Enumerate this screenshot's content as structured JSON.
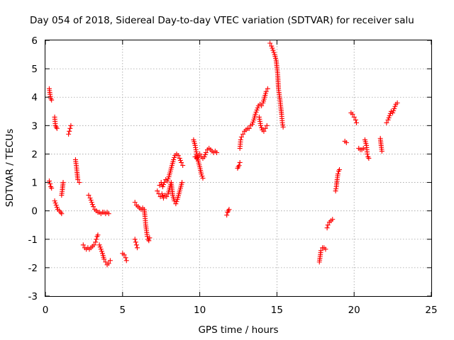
{
  "chart_data": {
    "type": "scatter",
    "title": "Day 054 of 2018, Sidereal Day-to-day VTEC variation (SDTVAR) for receiver salu",
    "xlabel": "GPS time / hours",
    "ylabel": "SDTVAR / TECUs",
    "xlim": [
      0,
      25
    ],
    "ylim": [
      -3,
      6
    ],
    "xticks": [
      0,
      5,
      10,
      15,
      20,
      25
    ],
    "yticks": [
      -3,
      -2,
      -1,
      0,
      1,
      2,
      3,
      4,
      5,
      6
    ],
    "grid": true,
    "marker": "+",
    "color": "#ff0000",
    "series": [
      {
        "name": "SDTVAR",
        "segments": [
          [
            [
              0.25,
              4.3
            ],
            [
              0.3,
              4.1
            ],
            [
              0.35,
              3.95
            ],
            [
              0.4,
              3.9
            ]
          ],
          [
            [
              0.25,
              1.05
            ],
            [
              0.3,
              0.95
            ],
            [
              0.35,
              0.85
            ],
            [
              0.4,
              0.8
            ]
          ],
          [
            [
              0.6,
              3.3
            ],
            [
              0.65,
              3.0
            ],
            [
              0.7,
              2.95
            ],
            [
              0.75,
              2.9
            ]
          ],
          [
            [
              0.6,
              0.35
            ],
            [
              0.7,
              0.2
            ],
            [
              0.8,
              0.05
            ],
            [
              0.9,
              0.0
            ],
            [
              1.0,
              -0.05
            ],
            [
              1.05,
              -0.1
            ]
          ],
          [
            [
              1.05,
              0.55
            ],
            [
              1.1,
              0.75
            ],
            [
              1.15,
              1.0
            ]
          ],
          [
            [
              1.5,
              2.7
            ],
            [
              1.55,
              2.8
            ],
            [
              1.6,
              2.9
            ],
            [
              1.65,
              3.0
            ]
          ],
          [
            [
              1.95,
              1.8
            ],
            [
              2.0,
              1.6
            ],
            [
              2.05,
              1.35
            ],
            [
              2.1,
              1.1
            ],
            [
              2.2,
              1.0
            ]
          ],
          [
            [
              2.45,
              -1.2
            ],
            [
              2.55,
              -1.3
            ],
            [
              2.65,
              -1.35
            ],
            [
              2.75,
              -1.3
            ],
            [
              2.85,
              -1.35
            ],
            [
              2.95,
              -1.3
            ],
            [
              3.05,
              -1.25
            ],
            [
              3.15,
              -1.2
            ],
            [
              3.25,
              -1.1
            ],
            [
              3.3,
              -1.0
            ],
            [
              3.35,
              -0.9
            ],
            [
              3.4,
              -0.85
            ]
          ],
          [
            [
              2.8,
              0.55
            ],
            [
              2.9,
              0.45
            ],
            [
              3.0,
              0.3
            ],
            [
              3.1,
              0.15
            ],
            [
              3.2,
              0.05
            ],
            [
              3.3,
              0.0
            ],
            [
              3.4,
              -0.05
            ],
            [
              3.5,
              -0.05
            ],
            [
              3.6,
              -0.1
            ],
            [
              3.7,
              -0.05
            ],
            [
              3.8,
              -0.05
            ],
            [
              3.9,
              -0.1
            ],
            [
              4.0,
              -0.05
            ],
            [
              4.1,
              -0.1
            ]
          ],
          [
            [
              3.5,
              -1.2
            ],
            [
              3.6,
              -1.35
            ],
            [
              3.7,
              -1.5
            ],
            [
              3.8,
              -1.7
            ],
            [
              3.9,
              -1.8
            ],
            [
              4.0,
              -1.9
            ],
            [
              4.1,
              -1.85
            ],
            [
              4.2,
              -1.75
            ]
          ],
          [
            [
              5.0,
              -1.5
            ],
            [
              5.1,
              -1.55
            ],
            [
              5.2,
              -1.65
            ],
            [
              5.25,
              -1.75
            ]
          ],
          [
            [
              5.8,
              -1.0
            ],
            [
              5.85,
              -1.1
            ],
            [
              5.9,
              -1.2
            ],
            [
              5.95,
              -1.3
            ]
          ],
          [
            [
              5.8,
              0.3
            ],
            [
              5.9,
              0.2
            ],
            [
              6.0,
              0.15
            ],
            [
              6.1,
              0.1
            ],
            [
              6.2,
              0.05
            ],
            [
              6.3,
              0.1
            ],
            [
              6.4,
              0.05
            ],
            [
              6.45,
              -0.2
            ],
            [
              6.5,
              -0.5
            ],
            [
              6.55,
              -0.7
            ],
            [
              6.6,
              -0.9
            ],
            [
              6.65,
              -1.0
            ],
            [
              6.7,
              -1.05
            ],
            [
              6.75,
              -0.95
            ]
          ],
          [
            [
              7.25,
              0.7
            ],
            [
              7.35,
              0.6
            ],
            [
              7.45,
              0.5
            ],
            [
              7.55,
              0.6
            ],
            [
              7.65,
              0.45
            ],
            [
              7.75,
              0.55
            ],
            [
              7.85,
              0.5
            ],
            [
              7.95,
              0.6
            ],
            [
              8.05,
              0.8
            ],
            [
              8.15,
              1.0
            ],
            [
              8.25,
              0.55
            ],
            [
              8.35,
              0.35
            ],
            [
              8.45,
              0.25
            ],
            [
              8.55,
              0.4
            ],
            [
              8.65,
              0.6
            ],
            [
              8.75,
              0.8
            ],
            [
              8.85,
              1.0
            ]
          ],
          [
            [
              7.4,
              0.9
            ],
            [
              7.5,
              1.0
            ],
            [
              7.6,
              0.85
            ],
            [
              7.7,
              1.0
            ],
            [
              7.8,
              1.1
            ],
            [
              7.9,
              1.05
            ],
            [
              8.0,
              1.2
            ],
            [
              8.1,
              1.4
            ],
            [
              8.2,
              1.6
            ],
            [
              8.3,
              1.8
            ],
            [
              8.4,
              1.95
            ],
            [
              8.5,
              2.0
            ],
            [
              8.6,
              1.95
            ],
            [
              8.7,
              1.85
            ],
            [
              8.8,
              1.7
            ],
            [
              8.9,
              1.6
            ]
          ],
          [
            [
              9.6,
              2.5
            ],
            [
              9.7,
              2.3
            ],
            [
              9.8,
              2.0
            ],
            [
              9.9,
              1.75
            ],
            [
              10.0,
              1.55
            ],
            [
              10.1,
              1.3
            ],
            [
              10.2,
              1.15
            ]
          ],
          [
            [
              9.7,
              1.9
            ],
            [
              9.8,
              1.85
            ],
            [
              9.9,
              1.95
            ],
            [
              10.0,
              2.0
            ],
            [
              10.1,
              1.9
            ],
            [
              10.2,
              1.85
            ],
            [
              10.3,
              1.9
            ],
            [
              10.4,
              2.05
            ],
            [
              10.5,
              2.15
            ],
            [
              10.6,
              2.2
            ],
            [
              10.7,
              2.15
            ],
            [
              10.8,
              2.1
            ],
            [
              10.9,
              2.05
            ],
            [
              11.0,
              2.1
            ],
            [
              11.1,
              2.05
            ]
          ],
          [
            [
              11.75,
              -0.15
            ],
            [
              11.8,
              -0.05
            ],
            [
              11.85,
              0.0
            ],
            [
              11.9,
              0.05
            ]
          ],
          [
            [
              12.45,
              1.5
            ],
            [
              12.5,
              1.55
            ],
            [
              12.55,
              1.6
            ],
            [
              12.6,
              1.7
            ]
          ],
          [
            [
              12.6,
              2.2
            ],
            [
              12.65,
              2.5
            ],
            [
              12.7,
              2.6
            ],
            [
              12.8,
              2.7
            ],
            [
              12.9,
              2.8
            ],
            [
              13.0,
              2.85
            ],
            [
              13.1,
              2.9
            ],
            [
              13.2,
              2.9
            ],
            [
              13.3,
              3.0
            ],
            [
              13.4,
              3.05
            ],
            [
              13.5,
              3.2
            ],
            [
              13.6,
              3.4
            ],
            [
              13.7,
              3.55
            ],
            [
              13.8,
              3.7
            ],
            [
              13.9,
              3.75
            ],
            [
              14.0,
              3.7
            ],
            [
              14.1,
              3.8
            ],
            [
              14.2,
              4.0
            ],
            [
              14.3,
              4.2
            ],
            [
              14.4,
              4.3
            ]
          ],
          [
            [
              13.85,
              3.3
            ],
            [
              13.95,
              3.0
            ],
            [
              14.05,
              2.85
            ],
            [
              14.15,
              2.8
            ],
            [
              14.25,
              2.9
            ],
            [
              14.35,
              3.0
            ]
          ],
          [
            [
              14.55,
              5.9
            ],
            [
              14.65,
              5.8
            ],
            [
              14.75,
              5.65
            ],
            [
              14.85,
              5.5
            ],
            [
              14.95,
              5.3
            ],
            [
              15.05,
              4.8
            ],
            [
              15.1,
              4.3
            ],
            [
              15.2,
              3.9
            ],
            [
              15.3,
              3.4
            ],
            [
              15.35,
              3.1
            ],
            [
              15.4,
              2.95
            ]
          ],
          [
            [
              17.75,
              -1.8
            ],
            [
              17.8,
              -1.6
            ],
            [
              17.85,
              -1.4
            ],
            [
              17.95,
              -1.3
            ],
            [
              18.05,
              -1.3
            ],
            [
              18.15,
              -1.35
            ]
          ],
          [
            [
              18.25,
              -0.6
            ],
            [
              18.3,
              -0.5
            ],
            [
              18.4,
              -0.4
            ],
            [
              18.5,
              -0.35
            ],
            [
              18.6,
              -0.3
            ]
          ],
          [
            [
              18.8,
              0.7
            ],
            [
              18.85,
              0.85
            ],
            [
              18.9,
              1.1
            ],
            [
              18.95,
              1.3
            ],
            [
              19.0,
              1.4
            ],
            [
              19.05,
              1.45
            ]
          ],
          [
            [
              19.4,
              2.45
            ],
            [
              19.5,
              2.4
            ]
          ],
          [
            [
              19.8,
              3.45
            ],
            [
              19.9,
              3.4
            ],
            [
              20.0,
              3.3
            ],
            [
              20.1,
              3.2
            ],
            [
              20.15,
              3.1
            ]
          ],
          [
            [
              20.3,
              2.2
            ],
            [
              20.4,
              2.15
            ],
            [
              20.5,
              2.15
            ],
            [
              20.6,
              2.2
            ]
          ],
          [
            [
              20.7,
              2.5
            ],
            [
              20.8,
              2.3
            ],
            [
              20.85,
              2.0
            ],
            [
              20.9,
              1.9
            ],
            [
              20.95,
              1.85
            ]
          ],
          [
            [
              21.7,
              2.55
            ],
            [
              21.75,
              2.3
            ],
            [
              21.8,
              2.1
            ]
          ],
          [
            [
              22.1,
              3.1
            ],
            [
              22.2,
              3.2
            ],
            [
              22.3,
              3.35
            ],
            [
              22.4,
              3.5
            ],
            [
              22.5,
              3.45
            ],
            [
              22.6,
              3.6
            ],
            [
              22.7,
              3.75
            ],
            [
              22.8,
              3.8
            ]
          ]
        ]
      }
    ]
  }
}
